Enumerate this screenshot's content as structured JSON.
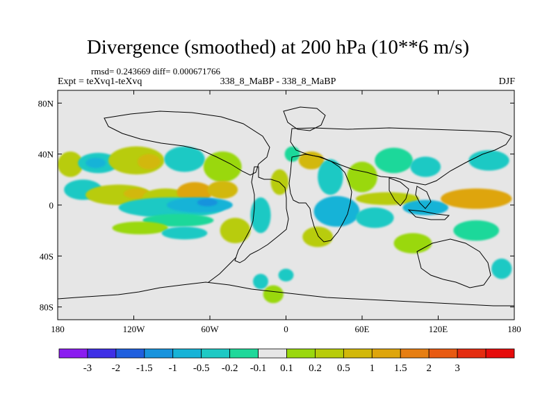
{
  "title": "Divergence (smoothed) at 200 hPa (10**6 m/s)",
  "stats": "rmsd= 0.243669  diff= 0.000671766",
  "experiment": "Expt = teXvq1-teXvq",
  "cases": "338_8_MaBP - 338_8_MaBP",
  "season": "DJF",
  "map": {
    "projection": "cylindrical-equidistant",
    "lon_range": [
      -180,
      180
    ],
    "lat_range": [
      -90,
      90
    ],
    "background_color": "#e6e6e6",
    "x_ticks": [
      {
        "value": -180,
        "label": "180"
      },
      {
        "value": -120,
        "label": "120W"
      },
      {
        "value": -60,
        "label": "60W"
      },
      {
        "value": 0,
        "label": "0"
      },
      {
        "value": 60,
        "label": "60E"
      },
      {
        "value": 120,
        "label": "120E"
      },
      {
        "value": 180,
        "label": "180"
      }
    ],
    "y_ticks": [
      {
        "value": 80,
        "label": "80N"
      },
      {
        "value": 40,
        "label": "40N"
      },
      {
        "value": 0,
        "label": "0"
      },
      {
        "value": -40,
        "label": "40S"
      },
      {
        "value": -80,
        "label": "80S"
      }
    ]
  },
  "colorbar": {
    "colors": [
      "#8b1cf0",
      "#3f2fe6",
      "#1f5fde",
      "#1893dd",
      "#17b3d7",
      "#1ec9c4",
      "#1fd89a",
      "#e6e6e6",
      "#9ad80e",
      "#b8cc0a",
      "#d2b80a",
      "#dea50c",
      "#e67e12",
      "#e85a12",
      "#e42c10",
      "#e60c0c"
    ],
    "labels": [
      "-3",
      "-2",
      "-1.5",
      "-1",
      "-0.5",
      "-0.2",
      "-0.1",
      "0.1",
      "0.2",
      "0.5",
      "1",
      "1.5",
      "2",
      "3"
    ]
  },
  "field_blobs": [
    {
      "lon": -170,
      "lat": 32,
      "rx": 10,
      "ry": 10,
      "color": "#b8cc0a"
    },
    {
      "lon": -148,
      "lat": 33,
      "rx": 16,
      "ry": 8,
      "color": "#1ec9c4"
    },
    {
      "lon": -150,
      "lat": 33,
      "rx": 8,
      "ry": 4,
      "color": "#17b3d7"
    },
    {
      "lon": -118,
      "lat": 35,
      "rx": 22,
      "ry": 11,
      "color": "#b8cc0a"
    },
    {
      "lon": -108,
      "lat": 34,
      "rx": 9,
      "ry": 6,
      "color": "#d2b80a"
    },
    {
      "lon": -80,
      "lat": 36,
      "rx": 16,
      "ry": 10,
      "color": "#1ec9c4"
    },
    {
      "lon": -50,
      "lat": 30,
      "rx": 15,
      "ry": 12,
      "color": "#9ad80e"
    },
    {
      "lon": -160,
      "lat": 12,
      "rx": 15,
      "ry": 8,
      "color": "#1ec9c4"
    },
    {
      "lon": -132,
      "lat": 8,
      "rx": 26,
      "ry": 8,
      "color": "#b8cc0a"
    },
    {
      "lon": -118,
      "lat": 9,
      "rx": 10,
      "ry": 4,
      "color": "#d2b80a"
    },
    {
      "lon": -95,
      "lat": 6,
      "rx": 18,
      "ry": 7,
      "color": "#b8cc0a"
    },
    {
      "lon": -72,
      "lat": 10,
      "rx": 14,
      "ry": 8,
      "color": "#dea50c"
    },
    {
      "lon": -50,
      "lat": 12,
      "rx": 12,
      "ry": 7,
      "color": "#d2b80a"
    },
    {
      "lon": -90,
      "lat": -2,
      "rx": 42,
      "ry": 8,
      "color": "#1ec9c4"
    },
    {
      "lon": -68,
      "lat": 0,
      "rx": 26,
      "ry": 6,
      "color": "#17b3d7"
    },
    {
      "lon": -62,
      "lat": 2,
      "rx": 8,
      "ry": 3,
      "color": "#1893dd"
    },
    {
      "lon": -85,
      "lat": -12,
      "rx": 28,
      "ry": 5,
      "color": "#1fd89a"
    },
    {
      "lon": -115,
      "lat": -18,
      "rx": 22,
      "ry": 5,
      "color": "#9ad80e"
    },
    {
      "lon": -80,
      "lat": -22,
      "rx": 18,
      "ry": 5,
      "color": "#1ec9c4"
    },
    {
      "lon": -40,
      "lat": -20,
      "rx": 12,
      "ry": 10,
      "color": "#b8cc0a"
    },
    {
      "lon": -20,
      "lat": -8,
      "rx": 8,
      "ry": 14,
      "color": "#1ec9c4"
    },
    {
      "lon": -5,
      "lat": 18,
      "rx": 7,
      "ry": 10,
      "color": "#b8cc0a"
    },
    {
      "lon": 5,
      "lat": 40,
      "rx": 6,
      "ry": 6,
      "color": "#1fd89a"
    },
    {
      "lon": 20,
      "lat": 35,
      "rx": 10,
      "ry": 7,
      "color": "#d2b80a"
    },
    {
      "lon": 35,
      "lat": 22,
      "rx": 10,
      "ry": 14,
      "color": "#1ec9c4"
    },
    {
      "lon": 40,
      "lat": -5,
      "rx": 18,
      "ry": 12,
      "color": "#17b3d7"
    },
    {
      "lon": 25,
      "lat": -25,
      "rx": 12,
      "ry": 8,
      "color": "#b8cc0a"
    },
    {
      "lon": 60,
      "lat": 22,
      "rx": 12,
      "ry": 12,
      "color": "#9ad80e"
    },
    {
      "lon": 85,
      "lat": 35,
      "rx": 15,
      "ry": 10,
      "color": "#1fd89a"
    },
    {
      "lon": 110,
      "lat": 30,
      "rx": 12,
      "ry": 8,
      "color": "#1ec9c4"
    },
    {
      "lon": 80,
      "lat": 5,
      "rx": 25,
      "ry": 5,
      "color": "#b8cc0a"
    },
    {
      "lon": 70,
      "lat": -10,
      "rx": 15,
      "ry": 8,
      "color": "#1ec9c4"
    },
    {
      "lon": 110,
      "lat": -2,
      "rx": 18,
      "ry": 6,
      "color": "#17b3d7"
    },
    {
      "lon": 150,
      "lat": 5,
      "rx": 28,
      "ry": 8,
      "color": "#dea50c"
    },
    {
      "lon": 160,
      "lat": 35,
      "rx": 16,
      "ry": 8,
      "color": "#1ec9c4"
    },
    {
      "lon": 150,
      "lat": -20,
      "rx": 18,
      "ry": 8,
      "color": "#1fd89a"
    },
    {
      "lon": 100,
      "lat": -30,
      "rx": 15,
      "ry": 8,
      "color": "#9ad80e"
    },
    {
      "lon": -20,
      "lat": -60,
      "rx": 6,
      "ry": 6,
      "color": "#1ec9c4"
    },
    {
      "lon": -10,
      "lat": -70,
      "rx": 8,
      "ry": 7,
      "color": "#9ad80e"
    },
    {
      "lon": 0,
      "lat": -55,
      "rx": 6,
      "ry": 5,
      "color": "#1ec9c4"
    },
    {
      "lon": 170,
      "lat": -50,
      "rx": 8,
      "ry": 8,
      "color": "#1ec9c4"
    }
  ]
}
